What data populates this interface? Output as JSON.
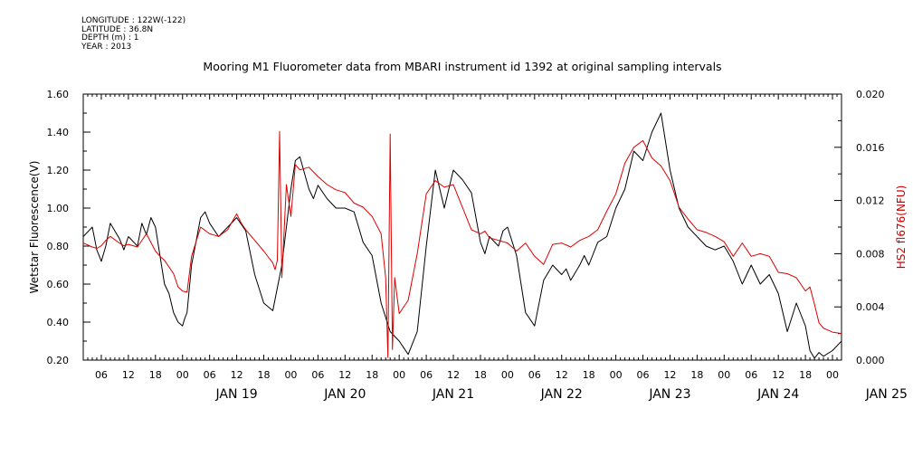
{
  "metadata": {
    "longitude": "LONGITUDE : 122W(-122)",
    "latitude": "LATITUDE : 36.8N",
    "depth": "DEPTH (m) : 1",
    "year": "YEAR : 2013"
  },
  "chart_data": {
    "type": "line",
    "title": "Mooring M1 Fluorometer data from MBARI instrument id 1392 at original sampling intervals",
    "xlabel": "",
    "ylabel_left": "Wetstar Fluorescence(V)",
    "ylabel_right": "HS2 fl676(NFU)",
    "x_unit": "hours since JAN 18 00:00 (2013)",
    "xlim": [
      2,
      170
    ],
    "ylim_left": [
      0.2,
      1.6
    ],
    "ylim_right": [
      0.0,
      0.02
    ],
    "yticks_left": [
      "0.20",
      "0.40",
      "0.60",
      "0.80",
      "1.00",
      "1.20",
      "1.40",
      "1.60"
    ],
    "yticks_right": [
      "0.000",
      "0.004",
      "0.008",
      "0.012",
      "0.016",
      "0.020"
    ],
    "hour_ticks": [
      "06",
      "12",
      "18",
      "00",
      "06",
      "12",
      "18",
      "00",
      "06",
      "12",
      "18",
      "00",
      "06",
      "12",
      "18",
      "00",
      "06",
      "12",
      "18",
      "00",
      "06",
      "12",
      "18",
      "00",
      "06",
      "12",
      "18",
      "00"
    ],
    "day_labels": [
      "JAN 19",
      "JAN 20",
      "JAN 21",
      "JAN 22",
      "JAN 23",
      "JAN 24",
      "JAN 25"
    ],
    "grid": false,
    "legend": "none",
    "series": [
      {
        "axis": "left",
        "color": "#000000",
        "x": [
          2,
          4,
          5,
          6,
          7,
          8,
          10,
          11,
          12,
          14,
          15,
          16,
          17,
          18,
          19,
          20,
          21,
          22,
          23,
          24,
          24.5,
          25,
          26,
          28,
          29,
          30,
          32,
          34,
          36,
          38,
          40,
          42,
          44,
          46,
          48,
          49,
          50,
          52,
          53,
          54,
          56,
          58,
          60,
          62,
          64,
          66,
          68,
          70,
          72,
          74,
          76,
          78,
          80,
          82,
          84,
          86,
          88,
          90,
          91,
          92,
          94,
          95,
          96,
          98,
          100,
          102,
          104,
          106,
          108,
          109,
          110,
          112,
          113,
          114,
          116,
          118,
          120,
          122,
          124,
          126,
          128,
          130,
          132,
          134,
          136,
          138,
          140,
          142,
          144,
          146,
          148,
          150,
          152,
          154,
          156,
          158,
          160,
          162,
          163,
          164,
          165,
          166,
          168,
          170
        ],
        "y": [
          0.85,
          0.9,
          0.78,
          0.72,
          0.8,
          0.92,
          0.84,
          0.78,
          0.85,
          0.8,
          0.92,
          0.86,
          0.95,
          0.9,
          0.75,
          0.6,
          0.55,
          0.45,
          0.4,
          0.38,
          0.42,
          0.45,
          0.7,
          0.95,
          0.98,
          0.92,
          0.85,
          0.9,
          0.95,
          0.88,
          0.65,
          0.5,
          0.46,
          0.7,
          1.1,
          1.25,
          1.27,
          1.1,
          1.05,
          1.12,
          1.05,
          1.0,
          1.0,
          0.98,
          0.82,
          0.75,
          0.5,
          0.35,
          0.3,
          0.23,
          0.35,
          0.8,
          1.2,
          1.0,
          1.2,
          1.15,
          1.08,
          0.82,
          0.76,
          0.85,
          0.8,
          0.88,
          0.9,
          0.75,
          0.45,
          0.38,
          0.62,
          0.7,
          0.65,
          0.68,
          0.62,
          0.7,
          0.75,
          0.7,
          0.82,
          0.85,
          1.0,
          1.1,
          1.3,
          1.25,
          1.4,
          1.5,
          1.2,
          1.0,
          0.9,
          0.85,
          0.8,
          0.78,
          0.8,
          0.72,
          0.6,
          0.7,
          0.6,
          0.65,
          0.55,
          0.35,
          0.5,
          0.38,
          0.25,
          0.21,
          0.24,
          0.22,
          0.25,
          0.3
        ]
      },
      {
        "axis": "right",
        "color": "#dd0000",
        "x": [
          2,
          4,
          5,
          6,
          7,
          8,
          10,
          11,
          12,
          14,
          16,
          18,
          19,
          20,
          22,
          23,
          24,
          25,
          26,
          28,
          30,
          32,
          34,
          36,
          37,
          38,
          40,
          42,
          44,
          44.5,
          45,
          45.5,
          46,
          47,
          48,
          49,
          50,
          52,
          54,
          56,
          58,
          60,
          62,
          64,
          66,
          68,
          69,
          69.5,
          70,
          70.5,
          71,
          72,
          74,
          76,
          78,
          80,
          82,
          84,
          86,
          88,
          90,
          91,
          92,
          94,
          96,
          98,
          100,
          102,
          104,
          106,
          108,
          110,
          112,
          114,
          116,
          118,
          120,
          122,
          124,
          126,
          128,
          130,
          132,
          134,
          136,
          138,
          140,
          142,
          144,
          146,
          148,
          150,
          152,
          154,
          156,
          158,
          160,
          162,
          163,
          164,
          165,
          166,
          168,
          170
        ],
        "y": [
          0.0088,
          0.0085,
          0.0084,
          0.0086,
          0.009,
          0.0093,
          0.0088,
          0.0086,
          0.0087,
          0.0085,
          0.0095,
          0.0082,
          0.0078,
          0.0075,
          0.0065,
          0.0055,
          0.0052,
          0.0051,
          0.0078,
          0.01,
          0.0095,
          0.0093,
          0.0098,
          0.011,
          0.0103,
          0.0098,
          0.009,
          0.0082,
          0.0073,
          0.0068,
          0.0075,
          0.0172,
          0.0062,
          0.0132,
          0.0108,
          0.0147,
          0.0143,
          0.0145,
          0.0138,
          0.0132,
          0.0128,
          0.0126,
          0.0118,
          0.0115,
          0.0108,
          0.0095,
          0.0062,
          0.0002,
          0.017,
          0.0008,
          0.0062,
          0.0035,
          0.0045,
          0.008,
          0.0125,
          0.0135,
          0.013,
          0.0132,
          0.0115,
          0.0098,
          0.0095,
          0.0097,
          0.0092,
          0.009,
          0.0088,
          0.0082,
          0.0088,
          0.0078,
          0.0072,
          0.0087,
          0.0088,
          0.0085,
          0.009,
          0.0093,
          0.0098,
          0.0112,
          0.0125,
          0.0148,
          0.016,
          0.0165,
          0.0152,
          0.0146,
          0.0135,
          0.0115,
          0.0106,
          0.0098,
          0.0096,
          0.0093,
          0.0089,
          0.0078,
          0.0088,
          0.0078,
          0.008,
          0.0078,
          0.0066,
          0.0065,
          0.0062,
          0.0052,
          0.0055,
          0.0042,
          0.0028,
          0.0024,
          0.0021,
          0.002
        ]
      }
    ]
  }
}
